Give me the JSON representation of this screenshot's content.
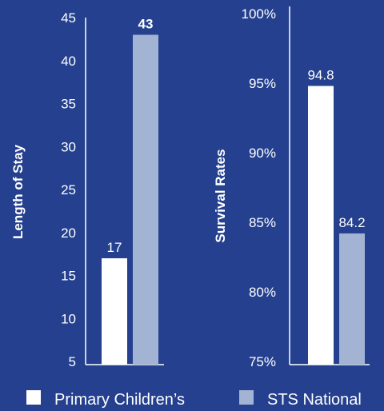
{
  "colors": {
    "background": "#24408e",
    "primary_childrens": "#ffffff",
    "sts_national": "#a3b3d4",
    "axis": "#ffffff"
  },
  "legend": {
    "placement": "bottom",
    "items": [
      {
        "label": "Primary Children’s",
        "color": "#ffffff"
      },
      {
        "label": "STS National",
        "color": "#a3b3d4"
      }
    ]
  },
  "chart_data": [
    {
      "type": "bar",
      "ylabel": "Length of Stay",
      "ylim": [
        5,
        45
      ],
      "yticks": [
        5,
        10,
        15,
        20,
        25,
        30,
        35,
        40,
        45
      ],
      "ytick_labels": [
        "5",
        "10",
        "15",
        "20",
        "25",
        "30",
        "35",
        "40",
        "45"
      ],
      "series": [
        {
          "name": "Primary Children’s",
          "values": [
            17
          ],
          "labels": [
            "17"
          ],
          "color": "#ffffff"
        },
        {
          "name": "STS National",
          "values": [
            43
          ],
          "labels": [
            "43"
          ],
          "color": "#a3b3d4"
        }
      ]
    },
    {
      "type": "bar",
      "ylabel": "Survival Rates",
      "ylim": [
        75,
        100
      ],
      "yticks": [
        75,
        80,
        85,
        90,
        95,
        100
      ],
      "ytick_labels": [
        "75%",
        "80%",
        "85%",
        "90%",
        "95%",
        "100%"
      ],
      "series": [
        {
          "name": "Primary Children’s",
          "values": [
            94.8
          ],
          "labels": [
            "94.8"
          ],
          "color": "#ffffff"
        },
        {
          "name": "STS National",
          "values": [
            84.2
          ],
          "labels": [
            "84.2"
          ],
          "color": "#a3b3d4"
        }
      ]
    }
  ]
}
